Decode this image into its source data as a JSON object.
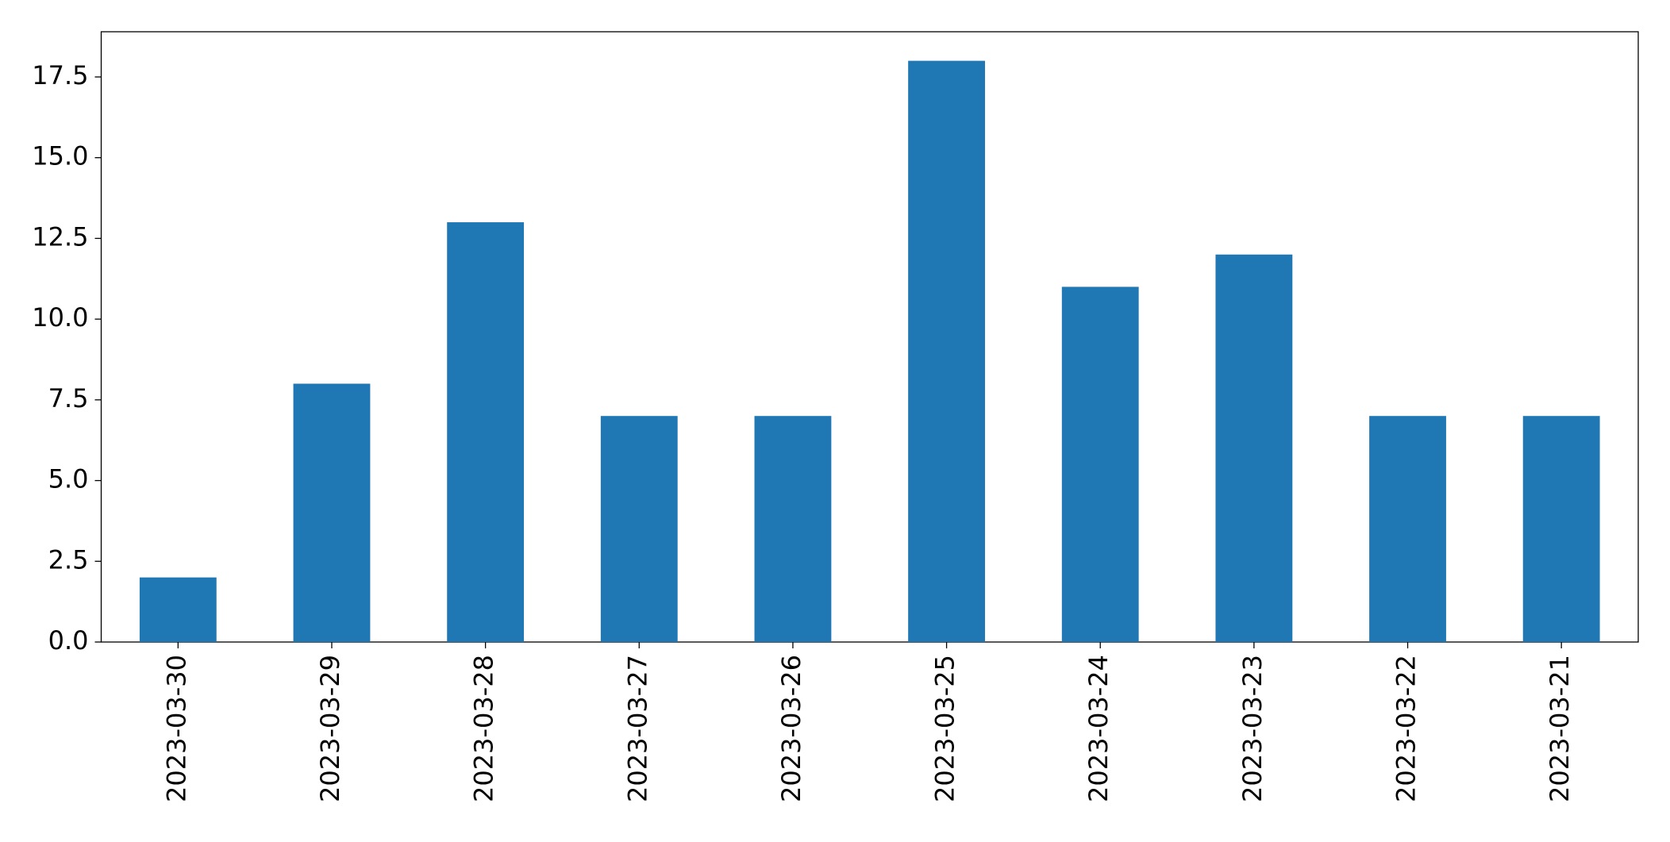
{
  "chart_data": {
    "type": "bar",
    "categories": [
      "2023-03-30",
      "2023-03-29",
      "2023-03-28",
      "2023-03-27",
      "2023-03-26",
      "2023-03-25",
      "2023-03-24",
      "2023-03-23",
      "2023-03-22",
      "2023-03-21"
    ],
    "values": [
      2,
      8,
      13,
      7,
      7,
      18,
      11,
      12,
      7,
      7
    ],
    "color": "#1f77b4",
    "ylim": [
      0,
      18.9
    ],
    "yticks": [
      {
        "value": 0,
        "label": "0.0"
      },
      {
        "value": 2.5,
        "label": "2.5"
      },
      {
        "value": 5,
        "label": "5.0"
      },
      {
        "value": 7.5,
        "label": "7.5"
      },
      {
        "value": 10,
        "label": "10.0"
      },
      {
        "value": 12.5,
        "label": "12.5"
      },
      {
        "value": 15,
        "label": "15.0"
      },
      {
        "value": 17.5,
        "label": "17.5"
      }
    ],
    "grid": false
  }
}
